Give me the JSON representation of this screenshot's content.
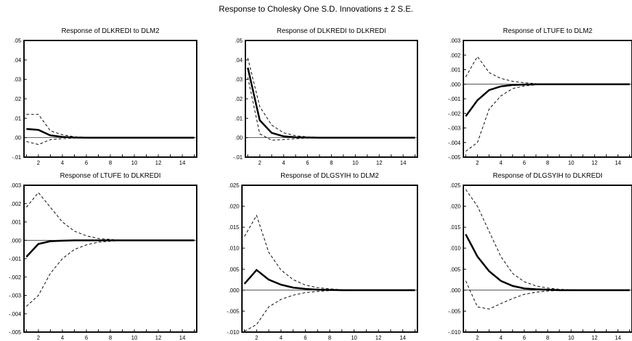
{
  "title": "Response to Cholesky One S.D. Innovations ± 2 S.E.",
  "chart_data": [
    {
      "type": "line",
      "title": "Response of DLKREDI to DLM2",
      "ylim": [
        -0.01,
        0.05
      ],
      "yticks": [
        ".05",
        ".04",
        ".03",
        ".02",
        ".01",
        ".00",
        "-.01"
      ],
      "ytick_values": [
        0.05,
        0.04,
        0.03,
        0.02,
        0.01,
        0.0,
        -0.01
      ],
      "xlim": [
        0.8,
        15.2
      ],
      "xticks": [
        "2",
        "4",
        "6",
        "8",
        "10",
        "12",
        "14"
      ],
      "x": [
        1,
        2,
        3,
        4,
        5,
        6,
        7,
        8,
        9,
        10,
        11,
        12,
        13,
        14,
        15
      ],
      "series": [
        {
          "role": "response",
          "values": [
            0.0045,
            0.004,
            0.0012,
            0.0004,
            0.0001,
            0,
            0,
            0,
            0,
            0,
            0,
            0,
            0,
            0,
            0
          ]
        },
        {
          "role": "upper",
          "values": [
            0.012,
            0.012,
            0.0035,
            0.0015,
            0.0005,
            0.0002,
            0.0001,
            0,
            0,
            0,
            0,
            0,
            0,
            0,
            0
          ]
        },
        {
          "role": "lower",
          "values": [
            -0.002,
            -0.0035,
            -0.001,
            -0.0005,
            -0.0002,
            -0.0001,
            0,
            0,
            0,
            0,
            0,
            0,
            0,
            0,
            0
          ]
        }
      ]
    },
    {
      "type": "line",
      "title": "Response of DLKREDI to DLKREDI",
      "ylim": [
        -0.01,
        0.05
      ],
      "yticks": [
        ".05",
        ".04",
        ".03",
        ".02",
        ".01",
        ".00",
        "-.01"
      ],
      "ytick_values": [
        0.05,
        0.04,
        0.03,
        0.02,
        0.01,
        0.0,
        -0.01
      ],
      "xlim": [
        0.8,
        15.2
      ],
      "xticks": [
        "2",
        "4",
        "6",
        "8",
        "10",
        "12",
        "14"
      ],
      "x": [
        1,
        2,
        3,
        4,
        5,
        6,
        7,
        8,
        9,
        10,
        11,
        12,
        13,
        14,
        15
      ],
      "series": [
        {
          "role": "response",
          "values": [
            0.036,
            0.009,
            0.0025,
            0.0007,
            0.0002,
            0.0001,
            0,
            0,
            0,
            0,
            0,
            0,
            0,
            0,
            0
          ]
        },
        {
          "role": "upper",
          "values": [
            0.041,
            0.016,
            0.0065,
            0.0025,
            0.001,
            0.0004,
            0.0002,
            0.0001,
            0,
            0,
            0,
            0,
            0,
            0,
            0
          ]
        },
        {
          "role": "lower",
          "values": [
            0.031,
            0.002,
            -0.0013,
            -0.001,
            -0.0005,
            -0.0002,
            -0.0001,
            0,
            0,
            0,
            0,
            0,
            0,
            0,
            0
          ]
        }
      ]
    },
    {
      "type": "line",
      "title": "Response of LTUFE to DLM2",
      "ylim": [
        -0.005,
        0.003
      ],
      "yticks": [
        ".003",
        ".002",
        ".001",
        ".000",
        "-.001",
        "-.002",
        "-.003",
        "-.004",
        "-.005"
      ],
      "ytick_values": [
        0.003,
        0.002,
        0.001,
        0.0,
        -0.001,
        -0.002,
        -0.003,
        -0.004,
        -0.005
      ],
      "xlim": [
        0.8,
        15.2
      ],
      "xticks": [
        "2",
        "4",
        "6",
        "8",
        "10",
        "12",
        "14"
      ],
      "x": [
        1,
        2,
        3,
        4,
        5,
        6,
        7,
        8,
        9,
        10,
        11,
        12,
        13,
        14,
        15
      ],
      "series": [
        {
          "role": "response",
          "values": [
            -0.0022,
            -0.0011,
            -0.0004,
            -0.00015,
            -5e-05,
            -2e-05,
            0,
            0,
            0,
            0,
            0,
            0,
            0,
            0,
            0
          ]
        },
        {
          "role": "upper",
          "values": [
            0.0005,
            0.0019,
            0.0008,
            0.0004,
            0.0002,
            0.0001,
            4e-05,
            0,
            0,
            0,
            0,
            0,
            0,
            0,
            0
          ]
        },
        {
          "role": "lower",
          "values": [
            -0.0046,
            -0.004,
            -0.0017,
            -0.0008,
            -0.0003,
            -0.00012,
            -4e-05,
            0,
            0,
            0,
            0,
            0,
            0,
            0,
            0
          ]
        }
      ]
    },
    {
      "type": "line",
      "title": "Response of LTUFE to DLKREDI",
      "ylim": [
        -0.005,
        0.003
      ],
      "yticks": [
        ".003",
        ".002",
        ".001",
        ".000",
        "-.001",
        "-.002",
        "-.003",
        "-.004",
        "-.005"
      ],
      "ytick_values": [
        0.003,
        0.002,
        0.001,
        0.0,
        -0.001,
        -0.002,
        -0.003,
        -0.004,
        -0.005
      ],
      "xlim": [
        0.8,
        15.2
      ],
      "xticks": [
        "2",
        "4",
        "6",
        "8",
        "10",
        "12",
        "14"
      ],
      "x": [
        1,
        2,
        3,
        4,
        5,
        6,
        7,
        8,
        9,
        10,
        11,
        12,
        13,
        14,
        15
      ],
      "series": [
        {
          "role": "response",
          "values": [
            -0.0009,
            -0.0002,
            -5e-05,
            -2e-05,
            0,
            0,
            0,
            0,
            0,
            0,
            0,
            0,
            0,
            0,
            0
          ]
        },
        {
          "role": "upper",
          "values": [
            0.0018,
            0.0026,
            0.0018,
            0.001,
            0.0005,
            0.00025,
            0.0001,
            5e-05,
            0,
            0,
            0,
            0,
            0,
            0,
            0
          ]
        },
        {
          "role": "lower",
          "values": [
            -0.0036,
            -0.003,
            -0.0018,
            -0.001,
            -0.0005,
            -0.00025,
            -0.0001,
            -5e-05,
            0,
            0,
            0,
            0,
            0,
            0,
            0
          ]
        }
      ]
    },
    {
      "type": "line",
      "title": "Response of DLGSYIH to DLM2",
      "ylim": [
        -0.01,
        0.025
      ],
      "yticks": [
        ".025",
        ".020",
        ".015",
        ".010",
        ".005",
        ".000",
        "-.005",
        "-.010"
      ],
      "ytick_values": [
        0.025,
        0.02,
        0.015,
        0.01,
        0.005,
        0.0,
        -0.005,
        -0.01
      ],
      "xlim": [
        0.8,
        15.2
      ],
      "xticks": [
        "2",
        "4",
        "6",
        "8",
        "10",
        "12",
        "14"
      ],
      "x": [
        1,
        2,
        3,
        4,
        5,
        6,
        7,
        8,
        9,
        10,
        11,
        12,
        13,
        14,
        15
      ],
      "series": [
        {
          "role": "response",
          "values": [
            0.0015,
            0.0048,
            0.0025,
            0.0013,
            0.0006,
            0.0003,
            0.0001,
            5e-05,
            0,
            0,
            0,
            0,
            0,
            0,
            0
          ]
        },
        {
          "role": "upper",
          "values": [
            0.0128,
            0.0178,
            0.009,
            0.0048,
            0.0025,
            0.0012,
            0.0006,
            0.0003,
            0.0001,
            0,
            0,
            0,
            0,
            0,
            0
          ]
        },
        {
          "role": "lower",
          "values": [
            -0.0098,
            -0.0082,
            -0.004,
            -0.0022,
            -0.0012,
            -0.0006,
            -0.0003,
            -0.0001,
            0,
            0,
            0,
            0,
            0,
            0,
            0
          ]
        }
      ]
    },
    {
      "type": "line",
      "title": "Response of DLGSYIH to DLKREDI",
      "ylim": [
        -0.01,
        0.025
      ],
      "yticks": [
        ".025",
        ".020",
        ".015",
        ".010",
        ".005",
        ".000",
        "-.005",
        "-.010"
      ],
      "ytick_values": [
        0.025,
        0.02,
        0.015,
        0.01,
        0.005,
        0.0,
        -0.005,
        -0.01
      ],
      "xlim": [
        0.8,
        15.2
      ],
      "xticks": [
        "2",
        "4",
        "6",
        "8",
        "10",
        "12",
        "14"
      ],
      "x": [
        1,
        2,
        3,
        4,
        5,
        6,
        7,
        8,
        9,
        10,
        11,
        12,
        13,
        14,
        15
      ],
      "series": [
        {
          "role": "response",
          "values": [
            0.0133,
            0.008,
            0.0045,
            0.0022,
            0.001,
            0.0004,
            0.0002,
            0.0001,
            0,
            0,
            0,
            0,
            0,
            0,
            0
          ]
        },
        {
          "role": "upper",
          "values": [
            0.024,
            0.02,
            0.014,
            0.008,
            0.004,
            0.002,
            0.001,
            0.0005,
            0.0002,
            0.0001,
            0,
            0,
            0,
            0,
            0
          ]
        },
        {
          "role": "lower",
          "values": [
            0.0022,
            -0.004,
            -0.0045,
            -0.0032,
            -0.002,
            -0.001,
            -0.0005,
            -0.0002,
            -0.0001,
            0,
            0,
            0,
            0,
            0,
            0
          ]
        }
      ]
    }
  ]
}
